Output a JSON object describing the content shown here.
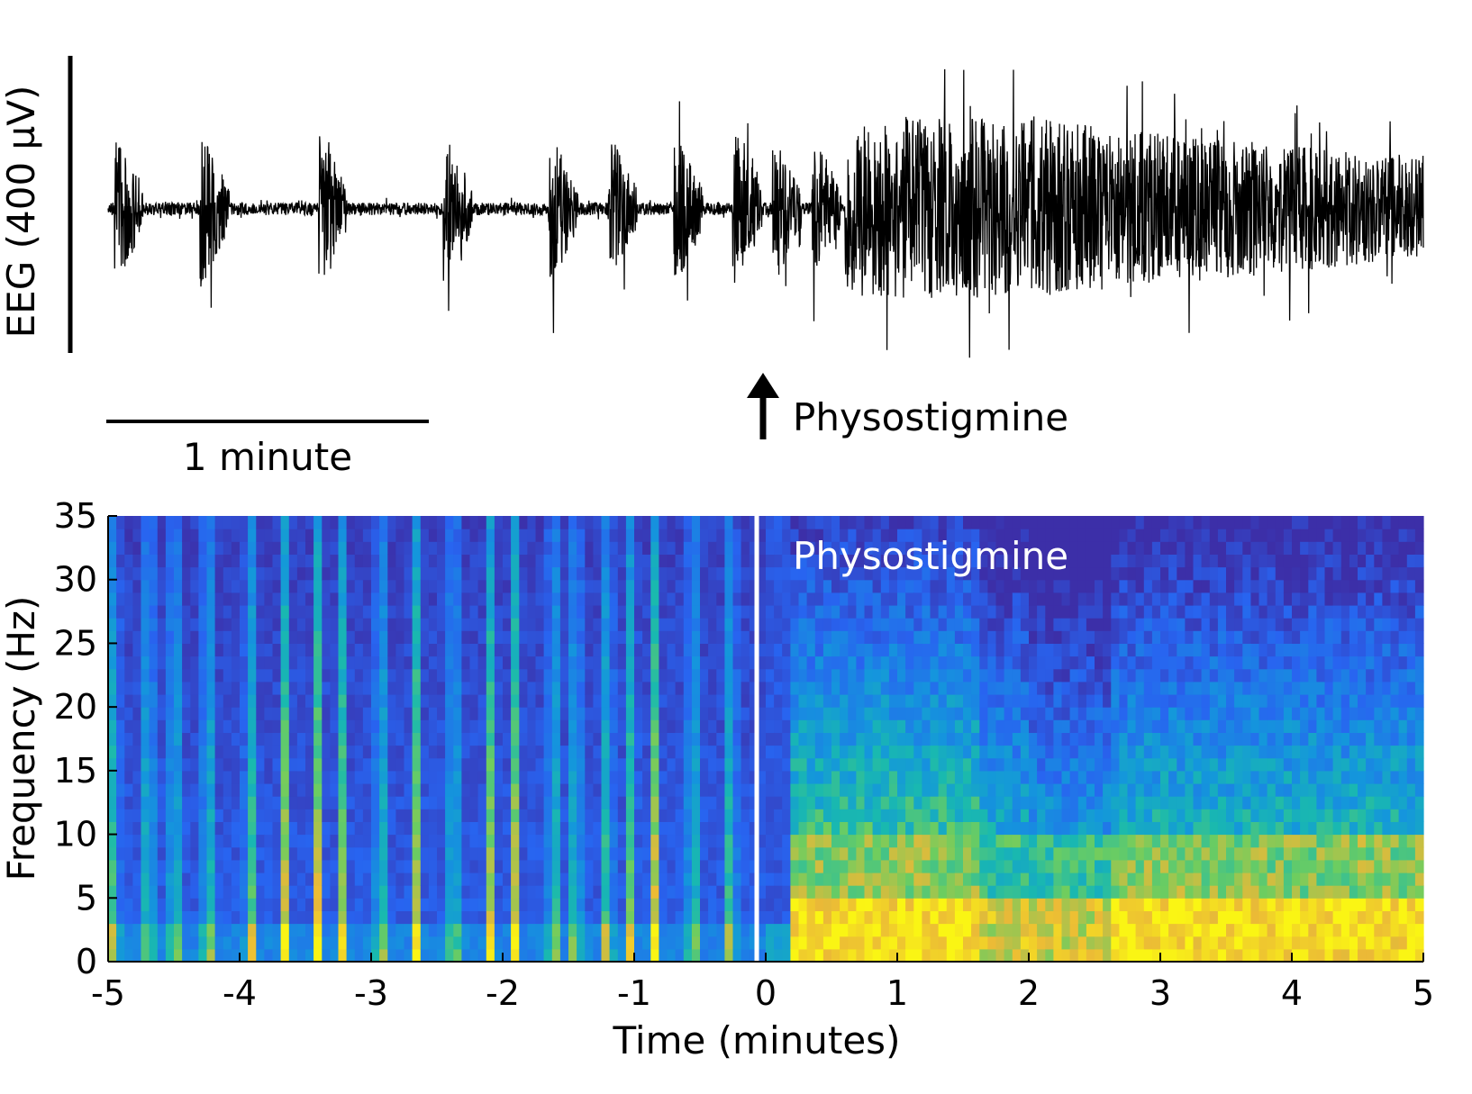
{
  "eeg_panel": {
    "ylabel": "EEG (400 µV)",
    "scale_bar_label": "1 minute",
    "event_label": "Physostigmine"
  },
  "spectrogram_panel": {
    "event_label": "Physostigmine",
    "xlabel": "Time (minutes)",
    "ylabel": "Frequency (Hz)",
    "xticks": [
      "-5",
      "-4",
      "-3",
      "-2",
      "-1",
      "0",
      "1",
      "2",
      "3",
      "4",
      "5"
    ],
    "yticks": [
      "0",
      "5",
      "10",
      "15",
      "20",
      "25",
      "30",
      "35"
    ]
  },
  "colors": {
    "trace": "#000000",
    "colormap_low": "#3c2fa8",
    "colormap_mid": "#17b7b0",
    "colormap_high": "#f9f51a",
    "event_line": "#ffffff"
  },
  "chart_data": [
    {
      "type": "line",
      "description_source": "EEG trace",
      "ylabel": "EEG (400 µV)",
      "scale_bar": {
        "duration_minutes": 1,
        "amplitude_uV": 400
      },
      "event": {
        "label": "Physostigmine",
        "time_minutes": 0
      },
      "time_range_minutes": [
        -5,
        5
      ],
      "burst_onsets_minutes": [
        -4.95,
        -4.3,
        -3.4,
        -2.45,
        -1.65,
        -1.2,
        -0.7,
        -0.25,
        0.05,
        0.35
      ],
      "continuous_activity_after_minutes": 0.6
    },
    {
      "type": "heatmap",
      "xlabel": "Time (minutes)",
      "ylabel": "Frequency (Hz)",
      "xlim": [
        -5,
        5
      ],
      "ylim": [
        0,
        35
      ],
      "xticks": [
        -5,
        -4,
        -3,
        -2,
        -1,
        0,
        1,
        2,
        3,
        4,
        5
      ],
      "yticks": [
        0,
        5,
        10,
        15,
        20,
        25,
        30,
        35
      ],
      "event": {
        "label": "Physostigmine",
        "time_minutes": 0
      },
      "colormap": "parula"
    }
  ]
}
